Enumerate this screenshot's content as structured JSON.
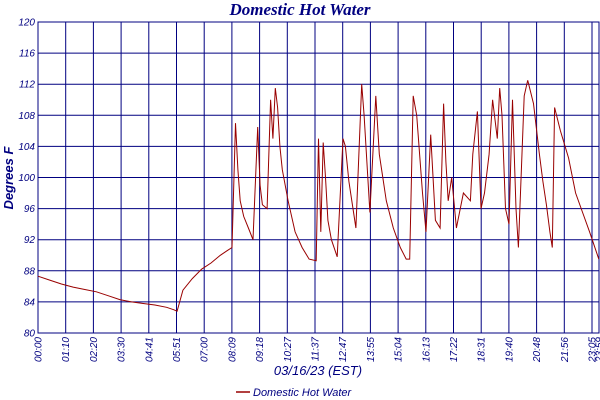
{
  "chart_data": {
    "type": "line",
    "title": "Domestic Hot Water",
    "xlabel": "03/16/23 (EST)",
    "ylabel": "Degrees F",
    "ylim": [
      80,
      120
    ],
    "y_ticks": [
      "80",
      "84",
      "88",
      "92",
      "96",
      "100",
      "104",
      "108",
      "112",
      "116",
      "120"
    ],
    "x_tick_labels": [
      "00:00",
      "01:10",
      "02:20",
      "03:30",
      "04:41",
      "05:51",
      "07:00",
      "08:09",
      "09:18",
      "10:27",
      "11:37",
      "12:47",
      "13:55",
      "15:04",
      "16:13",
      "17:22",
      "18:31",
      "19:40",
      "20:48",
      "21:56",
      "23:05",
      "23:59"
    ],
    "grid": true,
    "legend_position": "bottom-center",
    "series": [
      {
        "name": "Domestic Hot Water",
        "color": "#990000",
        "x_hours": [
          0,
          0.5,
          1.0,
          1.5,
          2.0,
          2.5,
          3.0,
          3.5,
          4.0,
          4.5,
          5.0,
          5.5,
          5.8,
          5.95,
          6.2,
          6.6,
          7.0,
          7.4,
          7.8,
          8.1,
          8.3,
          8.45,
          8.55,
          8.65,
          8.8,
          9.0,
          9.2,
          9.4,
          9.5,
          9.6,
          9.8,
          9.95,
          10.05,
          10.15,
          10.25,
          10.35,
          10.45,
          10.7,
          11.0,
          11.3,
          11.6,
          11.9,
          12.0,
          12.1,
          12.2,
          12.3,
          12.4,
          12.55,
          12.8,
          13.05,
          13.15,
          13.3,
          13.6,
          13.85,
          13.95,
          14.2,
          14.45,
          14.6,
          14.9,
          15.2,
          15.5,
          15.75,
          15.9,
          16.05,
          16.2,
          16.45,
          16.6,
          16.8,
          17.0,
          17.2,
          17.35,
          17.45,
          17.55,
          17.7,
          17.9,
          18.2,
          18.5,
          18.6,
          18.8,
          18.95,
          19.1,
          19.3,
          19.45,
          19.65,
          19.75,
          19.85,
          20.0,
          20.15,
          20.3,
          20.45,
          20.55,
          20.8,
          20.95,
          21.2,
          21.45,
          21.6,
          21.75,
          21.9,
          22.0,
          22.1,
          22.35,
          22.7,
          23.0,
          23.3,
          23.6,
          23.99
        ],
        "values": [
          87.3,
          86.8,
          86.3,
          85.9,
          85.6,
          85.3,
          84.8,
          84.3,
          84.0,
          83.8,
          83.6,
          83.3,
          83.0,
          82.8,
          85.5,
          87.0,
          88.2,
          89.0,
          90.0,
          90.6,
          91.0,
          107.0,
          101.0,
          97.0,
          95.0,
          93.5,
          92.0,
          106.5,
          99.0,
          96.5,
          96.0,
          110.0,
          105.0,
          111.5,
          109.0,
          104.0,
          101.0,
          97.0,
          93.0,
          91.0,
          89.5,
          89.3,
          105.0,
          93.0,
          104.5,
          100.0,
          94.5,
          92.0,
          89.8,
          105.0,
          104.0,
          99.5,
          93.5,
          112.0,
          108.0,
          95.5,
          110.5,
          103.0,
          97.0,
          93.5,
          91.0,
          89.5,
          89.5,
          110.5,
          108.0,
          98.0,
          93.0,
          105.5,
          94.5,
          93.5,
          109.5,
          102.0,
          97.0,
          100.0,
          93.5,
          98.0,
          97.0,
          103.0,
          108.5,
          96.0,
          98.0,
          103.0,
          110.0,
          105.0,
          111.5,
          108.0,
          96.0,
          94.0,
          110.0,
          96.0,
          91.0,
          110.5,
          112.5,
          109.5,
          103.0,
          99.5,
          96.5,
          93.0,
          91.0,
          109.0,
          106.0,
          102.5,
          98.0,
          95.5,
          93.0,
          89.5
        ]
      }
    ]
  }
}
